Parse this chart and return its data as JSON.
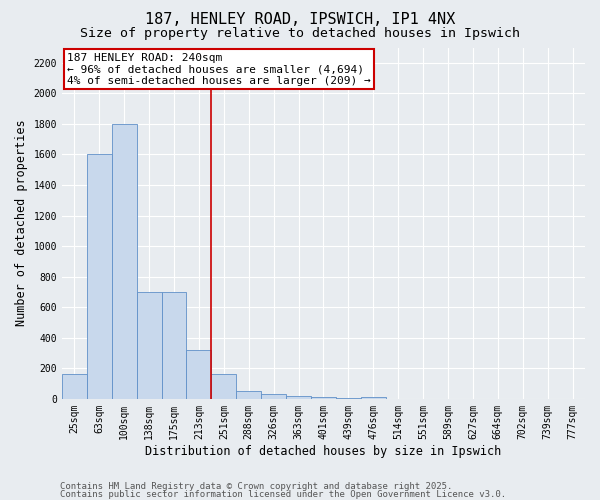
{
  "title1": "187, HENLEY ROAD, IPSWICH, IP1 4NX",
  "title2": "Size of property relative to detached houses in Ipswich",
  "xlabel": "Distribution of detached houses by size in Ipswich",
  "ylabel": "Number of detached properties",
  "categories": [
    "25sqm",
    "63sqm",
    "100sqm",
    "138sqm",
    "175sqm",
    "213sqm",
    "251sqm",
    "288sqm",
    "326sqm",
    "363sqm",
    "401sqm",
    "439sqm",
    "476sqm",
    "514sqm",
    "551sqm",
    "589sqm",
    "627sqm",
    "664sqm",
    "702sqm",
    "739sqm",
    "777sqm"
  ],
  "values": [
    160,
    1600,
    1800,
    700,
    700,
    320,
    160,
    50,
    30,
    20,
    10,
    5,
    10,
    2,
    0,
    0,
    0,
    0,
    0,
    0,
    0
  ],
  "bar_color": "#c8d8ec",
  "bar_edge_color": "#6090c8",
  "background_color": "#e8ecf0",
  "annotation_text": "187 HENLEY ROAD: 240sqm\n← 96% of detached houses are smaller (4,694)\n4% of semi-detached houses are larger (209) →",
  "annotation_box_facecolor": "#ffffff",
  "annotation_box_edgecolor": "#cc0000",
  "vline_color": "#cc0000",
  "vline_x_index": 6,
  "ylim": [
    0,
    2300
  ],
  "yticks": [
    0,
    200,
    400,
    600,
    800,
    1000,
    1200,
    1400,
    1600,
    1800,
    2000,
    2200
  ],
  "footnote1": "Contains HM Land Registry data © Crown copyright and database right 2025.",
  "footnote2": "Contains public sector information licensed under the Open Government Licence v3.0.",
  "title_fontsize": 11,
  "subtitle_fontsize": 9.5,
  "tick_fontsize": 7,
  "label_fontsize": 8.5,
  "annotation_fontsize": 8,
  "footnote_fontsize": 6.5
}
